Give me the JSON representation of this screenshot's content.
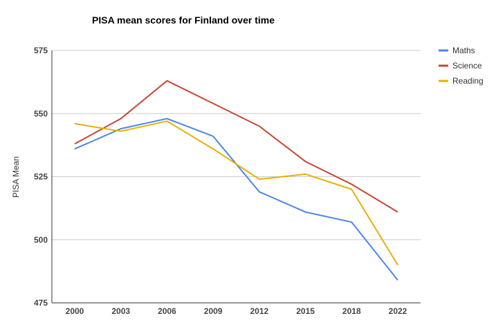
{
  "chart_data": {
    "type": "line",
    "title": "PISA mean scores for Finland over time",
    "xlabel": "",
    "ylabel": "PISA Mean",
    "categories": [
      "2000",
      "2003",
      "2006",
      "2009",
      "2012",
      "2015",
      "2018",
      "2022"
    ],
    "ylim": [
      475,
      575
    ],
    "yticks": [
      475,
      500,
      525,
      550,
      575
    ],
    "grid": true,
    "legend_position": "right",
    "series": [
      {
        "name": "Maths",
        "color": "#4a86e8",
        "values": [
          536,
          544,
          548,
          541,
          519,
          511,
          507,
          484
        ]
      },
      {
        "name": "Science",
        "color": "#cc4433",
        "values": [
          538,
          548,
          563,
          554,
          545,
          531,
          522,
          511
        ]
      },
      {
        "name": "Reading",
        "color": "#e6b000",
        "values": [
          546,
          543,
          547,
          536,
          524,
          526,
          520,
          490
        ]
      }
    ]
  }
}
